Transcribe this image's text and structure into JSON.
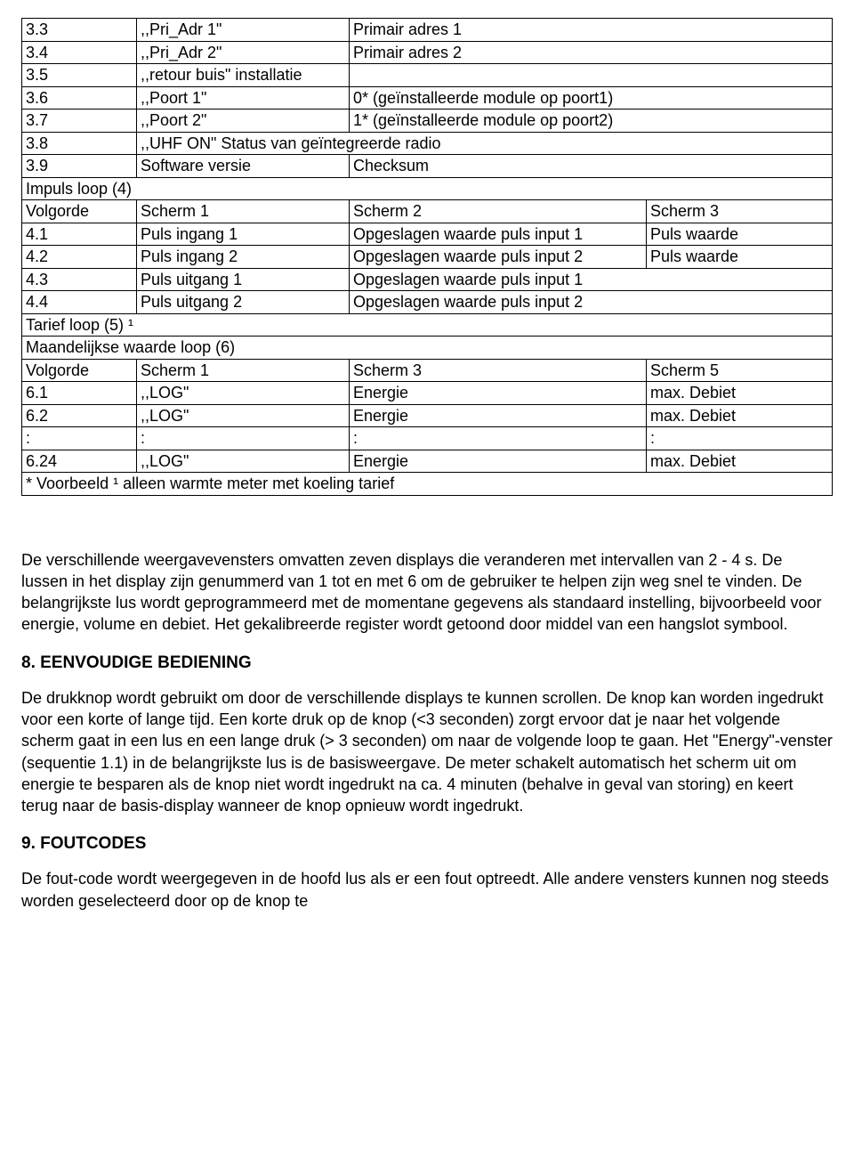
{
  "table": {
    "rows": [
      {
        "c1": "3.3",
        "c2": ",,Pri_Adr 1\"",
        "c3": "Primair adres 1",
        "c4": "",
        "colspan34": true
      },
      {
        "c1": "3.4",
        "c2": ",,Pri_Adr 2\"",
        "c3": "Primair adres 2",
        "c4": "",
        "colspan34": true
      },
      {
        "c1": "3.5",
        "c2": ",,retour buis\" installatie",
        "c3": "",
        "c4": "",
        "colspan34": true
      },
      {
        "c1": "3.6",
        "c2": ",,Poort 1\"",
        "c3": "0* (geïnstalleerde module op poort1)",
        "c4": "",
        "colspan34": true
      },
      {
        "c1": "3.7",
        "c2": ",,Poort 2\"",
        "c3": "1* (geïnstalleerde module op poort2)",
        "c4": "",
        "colspan34": true
      },
      {
        "c1": "3.8",
        "c2": ",,UHF ON\" Status van geïntegreerde radio",
        "c3": "",
        "c4": "",
        "full": true
      },
      {
        "c1": "3.9",
        "c2": "Software versie",
        "c3": "Checksum",
        "c4": "",
        "colspan34": true
      },
      {
        "c1": "Impuls loop (4)",
        "full4": true
      },
      {
        "c1": "Volgorde",
        "c2": "Scherm 1",
        "c3": "Scherm 2",
        "c4": "Scherm 3"
      },
      {
        "c1": "4.1",
        "c2": "Puls ingang 1",
        "c3": "Opgeslagen waarde puls input 1",
        "c4": "Puls waarde",
        "clip3": true
      },
      {
        "c1": "4.2",
        "c2": "Puls ingang 2",
        "c3": "Opgeslagen waarde puls input 2",
        "c4": "Puls waarde",
        "clip3": true
      },
      {
        "c1": "4.3",
        "c2": "Puls uitgang 1",
        "c3": "Opgeslagen waarde puls input 1",
        "c4": "",
        "colspan34": true
      },
      {
        "c1": "4.4",
        "c2": "Puls uitgang 2",
        "c3": "Opgeslagen waarde puls input 2",
        "c4": "",
        "colspan34": true
      },
      {
        "c1": "Tarief loop (5) ¹",
        "full4": true
      },
      {
        "c1": "Maandelijkse waarde loop (6)",
        "full4": true
      },
      {
        "c1": "Volgorde",
        "c2": "Scherm 1",
        "c3": "Scherm 3",
        "c4": "Scherm 5"
      },
      {
        "c1": "6.1",
        "c2": ",,LOG\"",
        "c3": "Energie",
        "c4": "max. Debiet"
      },
      {
        "c1": "6.2",
        "c2": ",,LOG\"",
        "c3": "Energie",
        "c4": "max. Debiet"
      },
      {
        "c1": ":",
        "c2": ":",
        "c3": ":",
        "c4": ":"
      },
      {
        "c1": "6.24",
        "c2": ",,LOG\"",
        "c3": "Energie",
        "c4": "max. Debiet"
      },
      {
        "c1": "* Voorbeeld   ¹ alleen warmte meter met koeling tarief",
        "full4": true
      }
    ]
  },
  "para1": "De verschillende weergavevensters omvatten zeven displays die veranderen met intervallen van 2 - 4 s. De lussen in het display zijn genummerd van 1 tot en met 6 om de gebruiker te helpen zijn weg snel te vinden. De belangrijkste lus wordt geprogrammeerd met de momentane gegevens als standaard instelling, bijvoorbeeld voor energie, volume en debiet. Het gekalibreerde register wordt getoond door middel van een hangslot symbool.",
  "h1": "8. EENVOUDIGE BEDIENING",
  "para2": "De drukknop wordt gebruikt om door de verschillende displays te kunnen scrollen. De knop kan worden ingedrukt voor een korte of lange tijd. Een korte druk op de knop (<3 seconden) zorgt ervoor dat je naar het volgende scherm gaat in een lus en een lange druk (> 3 seconden) om naar de volgende loop te gaan. Het \"Energy\"-venster (sequentie 1.1) in de belangrijkste lus is de basisweergave. De meter schakelt automatisch het scherm uit om energie te besparen als de knop niet wordt ingedrukt na ca. 4 minuten (behalve in geval van storing) en keert terug naar de basis-display wanneer de knop opnieuw wordt ingedrukt.",
  "h2": "9. FOUTCODES",
  "para3": "De fout-code wordt weergegeven in de hoofd lus als er een fout optreedt. Alle andere vensters kunnen nog steeds worden geselecteerd door op de knop te"
}
